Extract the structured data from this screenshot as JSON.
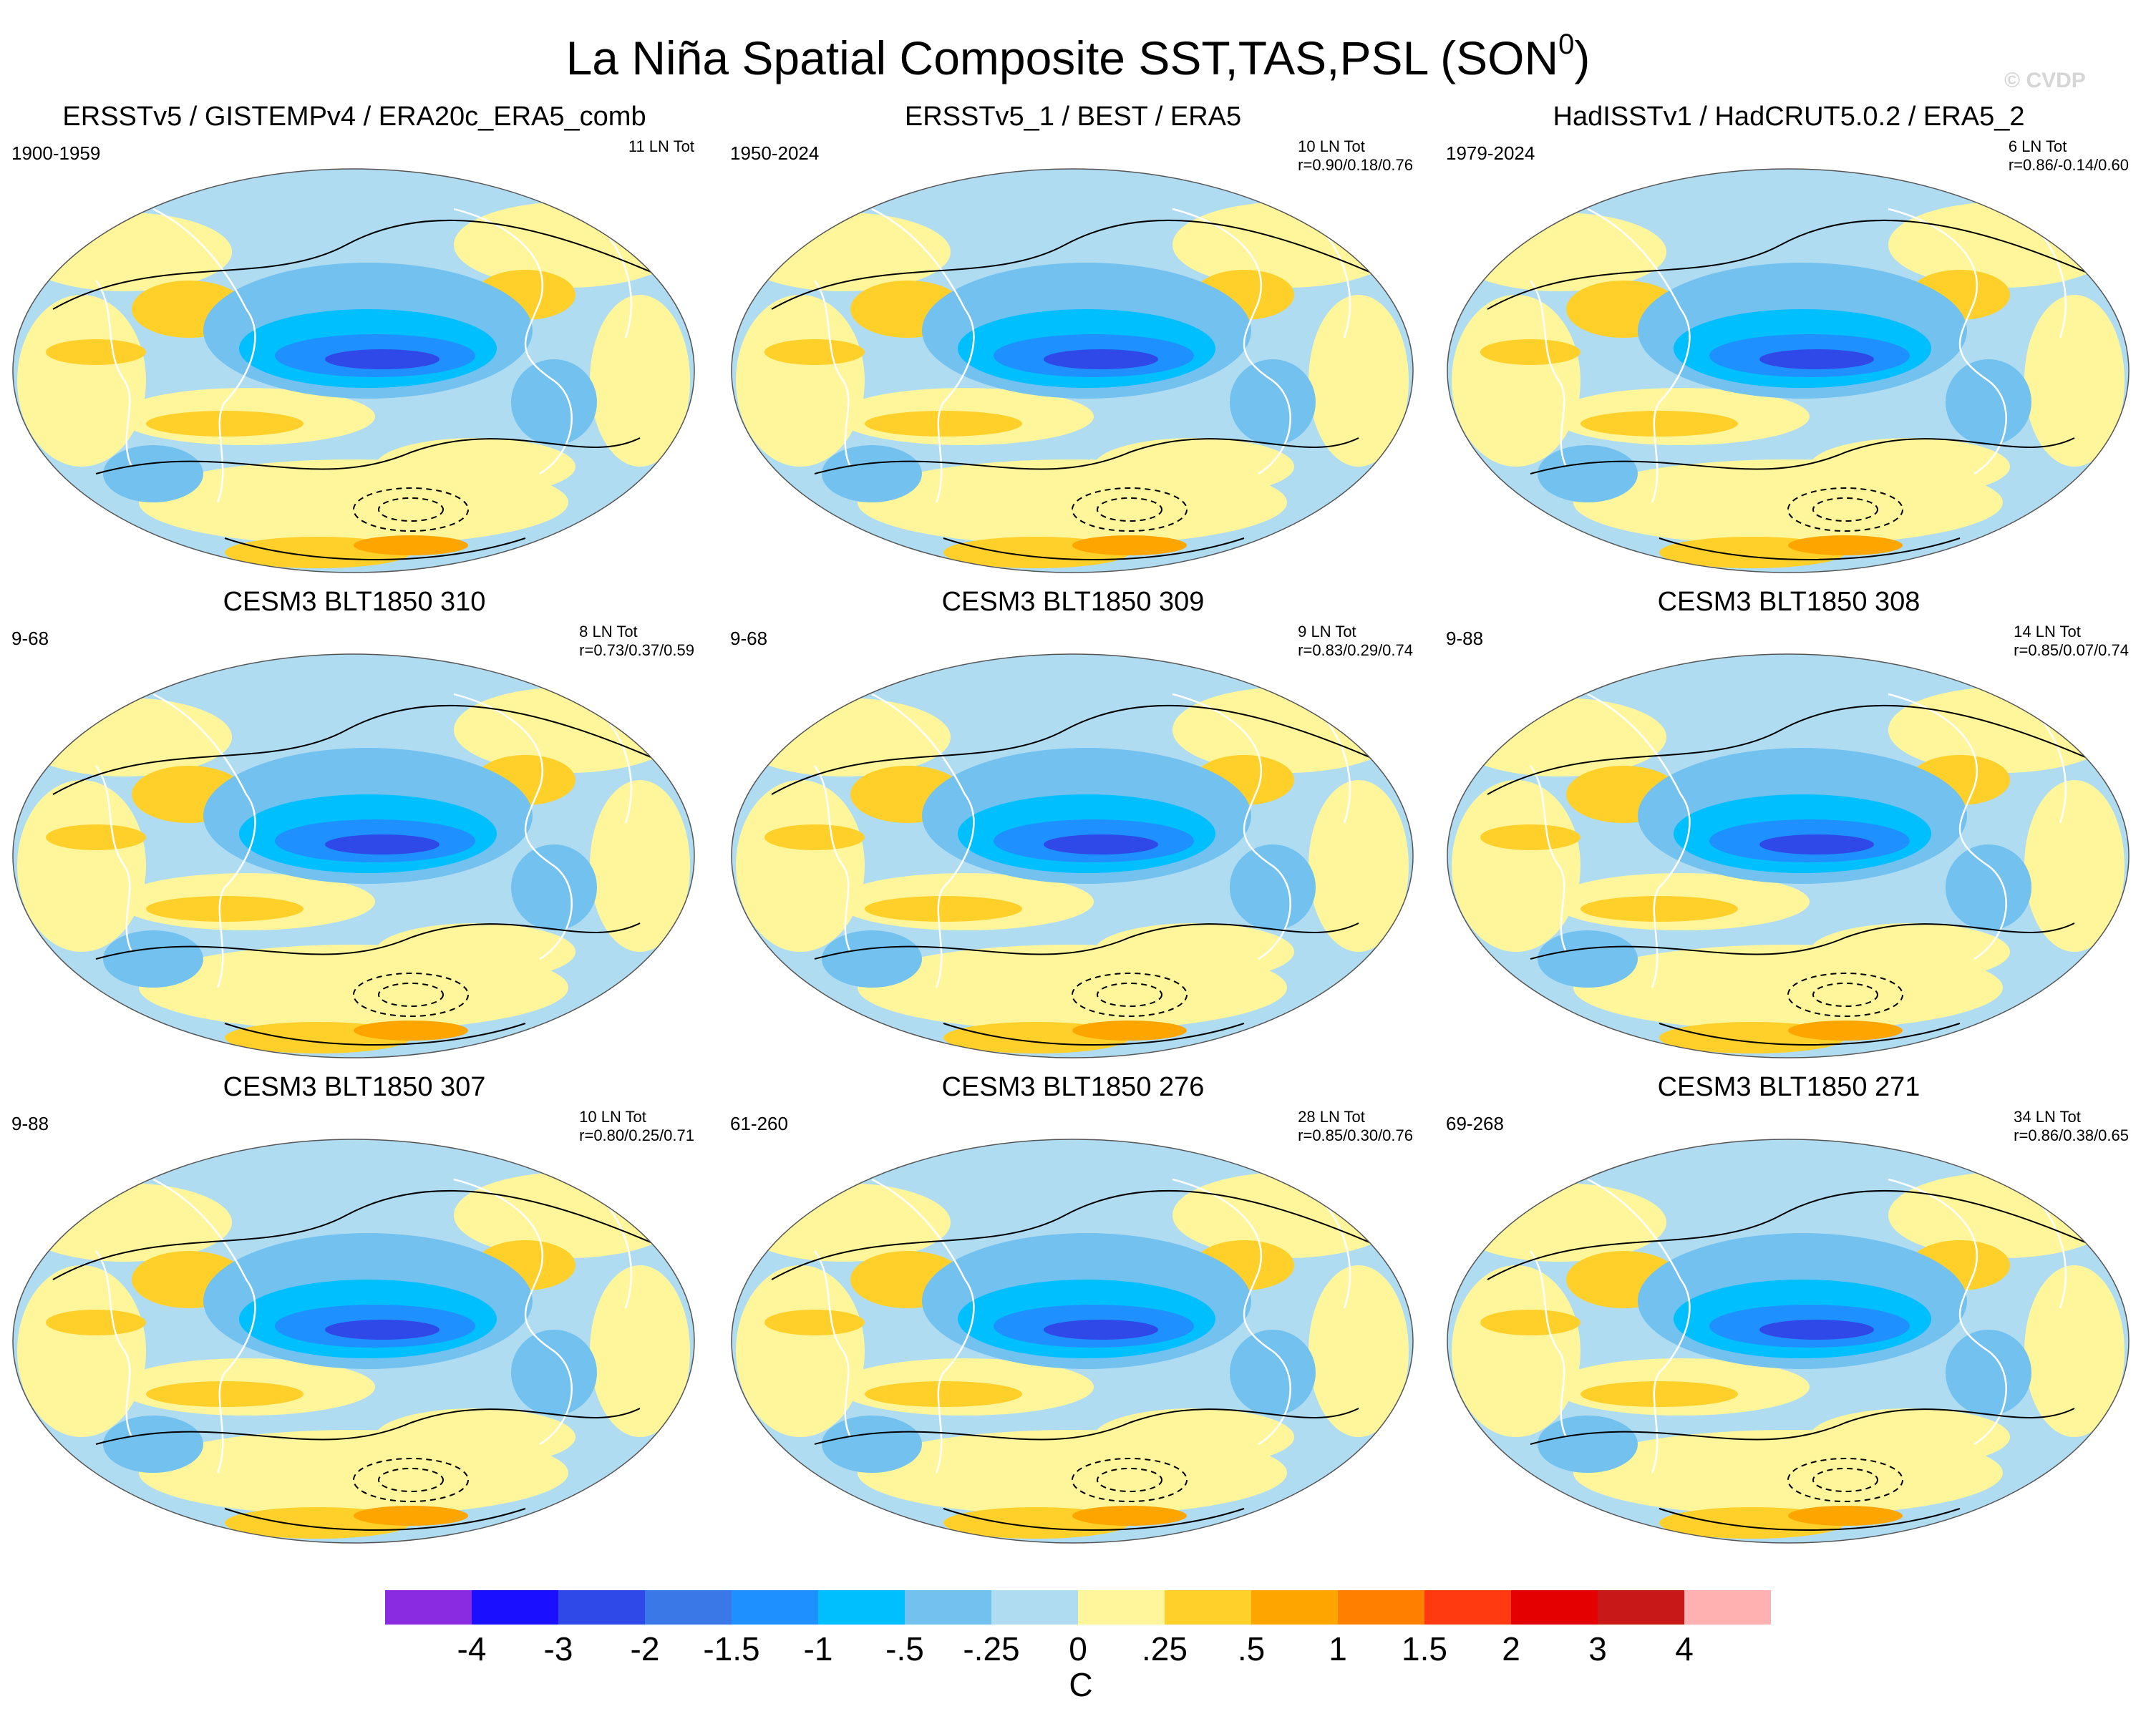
{
  "title": "La Niña Spatial Composite SST,TAS,PSL (SON",
  "title_sup": "0",
  "title_end": ")",
  "watermark": "© CVDP",
  "panels": [
    {
      "title": "ERSSTv5 / GISTEMPv4 / ERA20c_ERA5_comb",
      "period": "1900-1959",
      "count": "11 LN Tot",
      "corr": ""
    },
    {
      "title": "ERSSTv5_1 / BEST / ERA5",
      "period": "1950-2024",
      "count": "10 LN Tot",
      "corr": "r=0.90/0.18/0.76"
    },
    {
      "title": "HadISSTv1 / HadCRUT5.0.2 / ERA5_2",
      "period": "1979-2024",
      "count": "6 LN Tot",
      "corr": "r=0.86/-0.14/0.60"
    },
    {
      "title": "CESM3 BLT1850 310",
      "period": "9-68",
      "count": "8 LN Tot",
      "corr": "r=0.73/0.37/0.59"
    },
    {
      "title": "CESM3 BLT1850 309",
      "period": "9-68",
      "count": "9 LN Tot",
      "corr": "r=0.83/0.29/0.74"
    },
    {
      "title": "CESM3 BLT1850 308",
      "period": "9-88",
      "count": "14 LN Tot",
      "corr": "r=0.85/0.07/0.74"
    },
    {
      "title": "CESM3 BLT1850 307",
      "period": "9-88",
      "count": "10 LN Tot",
      "corr": "r=0.80/0.25/0.71"
    },
    {
      "title": "CESM3 BLT1850 276",
      "period": "61-260",
      "count": "28 LN Tot",
      "corr": "r=0.85/0.30/0.76"
    },
    {
      "title": "CESM3 BLT1850 271",
      "period": "69-268",
      "count": "34 LN Tot",
      "corr": "r=0.86/0.38/0.65"
    }
  ],
  "colorbar": {
    "colors": [
      "#8a2be2",
      "#1a10ff",
      "#2f48e8",
      "#3a78e8",
      "#1e90ff",
      "#00bfff",
      "#72c1ee",
      "#b0dcf2",
      "#fff69c",
      "#ffd02a",
      "#ffa500",
      "#ff7f00",
      "#ff3a10",
      "#e40000",
      "#c81818",
      "#ffb0b0"
    ],
    "ticks": [
      "-4",
      "-3",
      "-2",
      "-1.5",
      "-1",
      "-.5",
      "-.25",
      "0",
      ".25",
      ".5",
      "1",
      "1.5",
      "2",
      "3",
      "4"
    ],
    "unit": "C"
  },
  "map_palette": {
    "ocean_neutral": "#b0dcf2",
    "cool_1": "#72c1ee",
    "cool_2": "#00bfff",
    "cool_3": "#1e90ff",
    "cool_4": "#2f48e8",
    "warm_1": "#fff69c",
    "warm_2": "#ffd02a",
    "warm_3": "#ffa500",
    "warm_4": "#ff7f00",
    "coast": "#ffffff",
    "contour": "#000000"
  }
}
